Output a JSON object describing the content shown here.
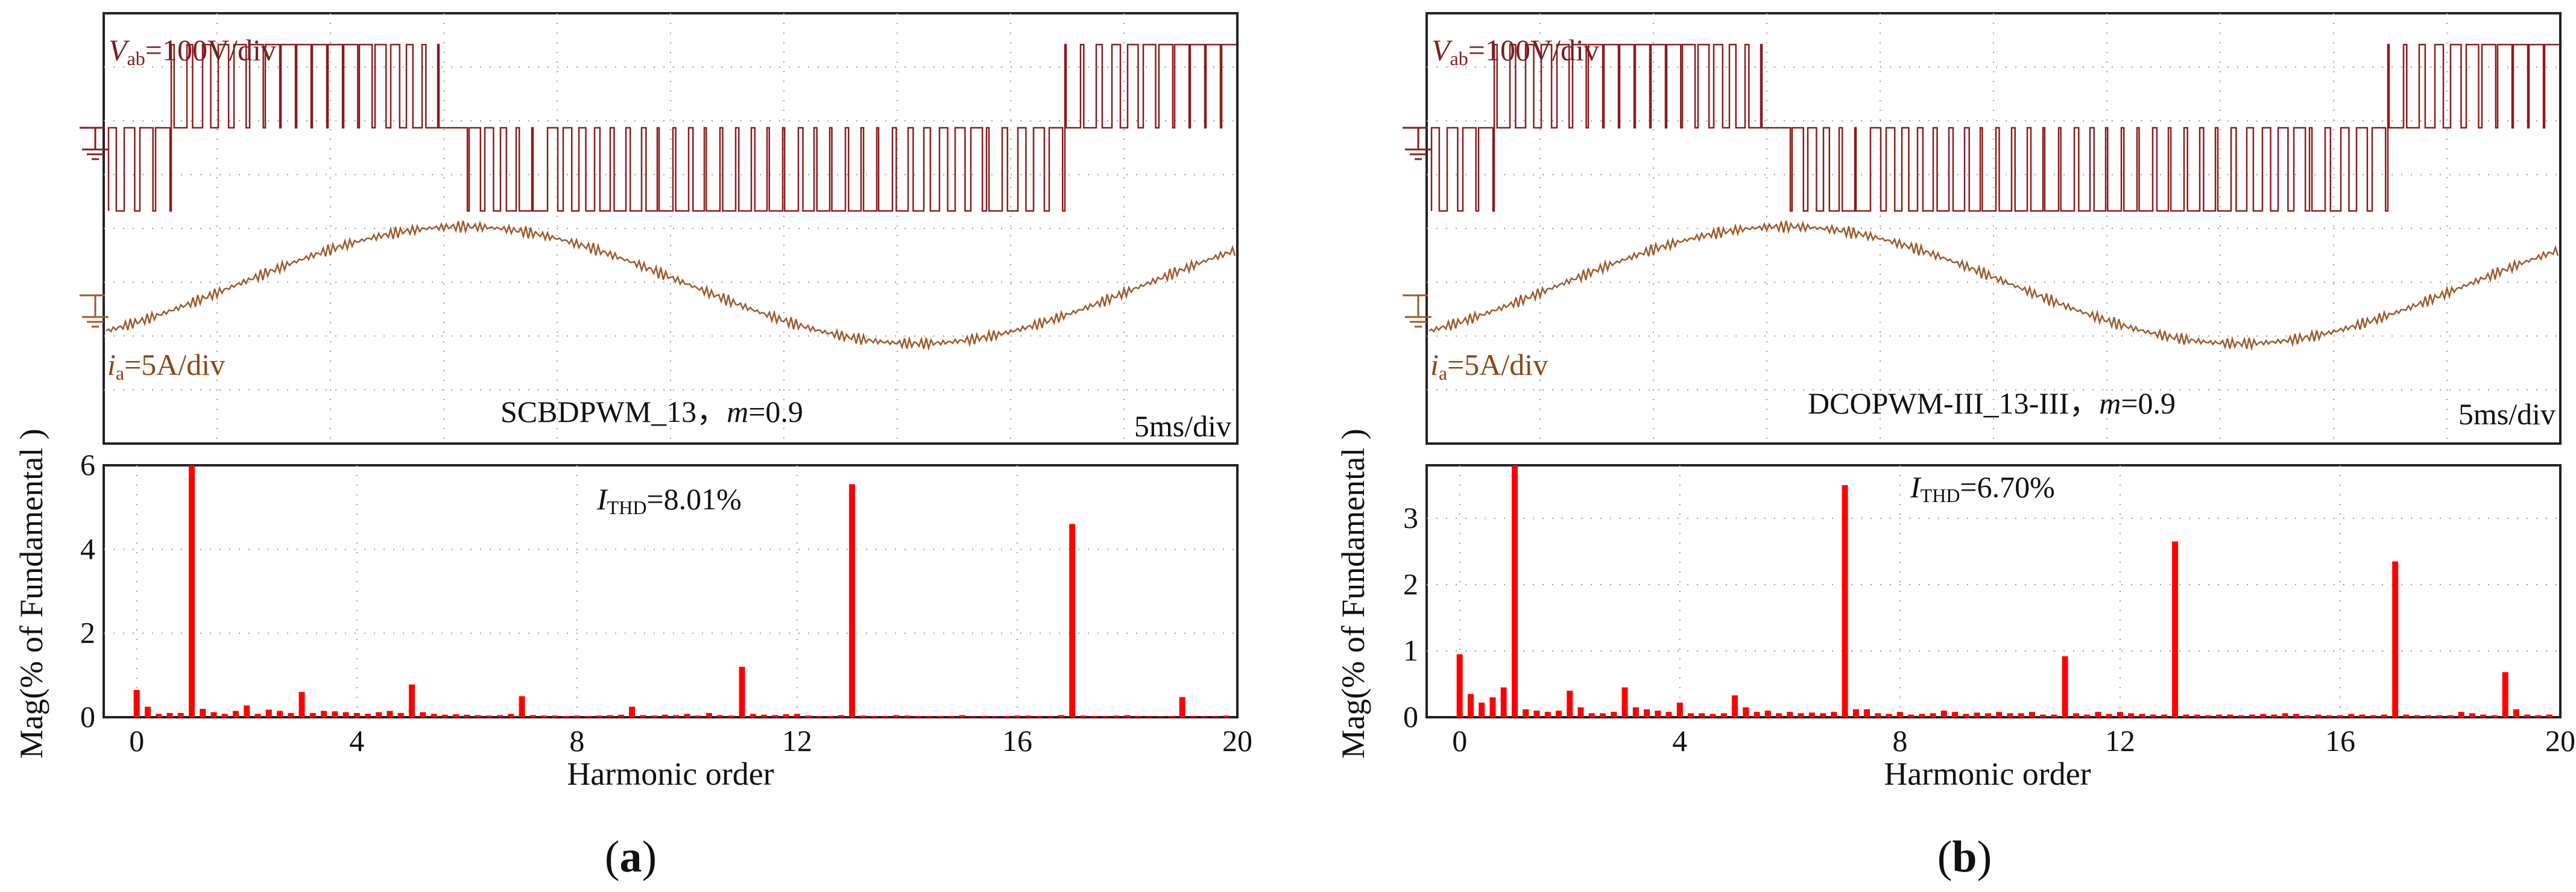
{
  "figure": {
    "colors": {
      "voltage": "#8b1c1c",
      "current": "#9c5a2a",
      "bar": "#ff0000",
      "grid": "#9a9a9a",
      "frame": "#222222"
    },
    "panels": [
      {
        "panel_label": "(a)",
        "panel_letter": "a",
        "scope": {
          "v_label_sym": "V",
          "v_label_sub": "ab",
          "v_label_rest": "=100V/div",
          "i_label_sym": "i",
          "i_label_sub": "a",
          "i_label_rest": "=5A/div",
          "method_text": "SCBDPWM_13，",
          "m_sym": "m",
          "m_value": "=0.9",
          "time_div": "5ms/div"
        },
        "thd": {
          "sym": "I",
          "sub": "THD",
          "value": "=8.01%"
        }
      },
      {
        "panel_label": "(b)",
        "panel_letter": "b",
        "scope": {
          "v_label_sym": "V",
          "v_label_sub": "ab",
          "v_label_rest": "=100V/div",
          "i_label_sym": "i",
          "i_label_sub": "a",
          "i_label_rest": "=5A/div",
          "method_text": "DCOPWM-III_13-III，",
          "m_sym": "m",
          "m_value": "=0.9",
          "time_div": "5ms/div"
        },
        "thd": {
          "sym": "I",
          "sub": "THD",
          "value": "=6.70%"
        }
      }
    ]
  },
  "chart_data": [
    {
      "type": "bar",
      "title": "",
      "xlabel": "Harmonic order",
      "ylabel": "Mag(% of Fundamental )",
      "xlim": [
        -0.6,
        20
      ],
      "ylim": [
        0,
        6
      ],
      "xticks": [
        0,
        4,
        8,
        12,
        16,
        20
      ],
      "yticks": [
        0,
        2,
        4,
        6
      ],
      "x": [
        0,
        0.2,
        0.4,
        0.6,
        0.8,
        1,
        1.2,
        1.4,
        1.6,
        1.8,
        2,
        2.2,
        2.4,
        2.6,
        2.8,
        3,
        3.2,
        3.4,
        3.6,
        3.8,
        4,
        4.2,
        4.4,
        4.6,
        4.8,
        5,
        5.2,
        5.4,
        5.6,
        5.8,
        6,
        6.2,
        6.4,
        6.6,
        6.8,
        7,
        7.2,
        7.4,
        7.6,
        7.8,
        8,
        8.2,
        8.4,
        8.6,
        8.8,
        9,
        9.2,
        9.4,
        9.6,
        9.8,
        10,
        10.2,
        10.4,
        10.6,
        10.8,
        11,
        11.2,
        11.4,
        11.6,
        11.8,
        12,
        12.2,
        12.4,
        12.6,
        12.8,
        13,
        13.2,
        13.4,
        13.6,
        13.8,
        14,
        14.2,
        14.4,
        14.6,
        14.8,
        15,
        15.2,
        15.4,
        15.6,
        15.8,
        16,
        16.2,
        16.4,
        16.6,
        16.8,
        17,
        17.2,
        17.4,
        17.6,
        17.8,
        18,
        18.2,
        18.4,
        18.6,
        18.8,
        19,
        19.2,
        19.4,
        19.6,
        19.8
      ],
      "values": [
        0.65,
        0.25,
        0.08,
        0.1,
        0.1,
        6.1,
        0.2,
        0.12,
        0.08,
        0.15,
        0.28,
        0.08,
        0.18,
        0.15,
        0.1,
        0.6,
        0.1,
        0.15,
        0.14,
        0.12,
        0.1,
        0.08,
        0.12,
        0.15,
        0.1,
        0.78,
        0.12,
        0.08,
        0.06,
        0.07,
        0.06,
        0.05,
        0.04,
        0.05,
        0.08,
        0.5,
        0.05,
        0.04,
        0.04,
        0.03,
        0.04,
        0.03,
        0.04,
        0.05,
        0.06,
        0.25,
        0.05,
        0.04,
        0.06,
        0.05,
        0.08,
        0.04,
        0.1,
        0.05,
        0.04,
        1.2,
        0.08,
        0.06,
        0.05,
        0.07,
        0.08,
        0.04,
        0.03,
        0.03,
        0.05,
        5.55,
        0.04,
        0.03,
        0.03,
        0.05,
        0.04,
        0.03,
        0.03,
        0.03,
        0.03,
        0.05,
        0.02,
        0.03,
        0.02,
        0.03,
        0.04,
        0.04,
        0.03,
        0.02,
        0.05,
        4.6,
        0.04,
        0.03,
        0.03,
        0.04,
        0.05,
        0.03,
        0.02,
        0.02,
        0.03,
        0.48,
        0.03,
        0.02,
        0.02,
        0.04
      ]
    },
    {
      "type": "bar",
      "title": "",
      "xlabel": "Harmonic order",
      "ylabel": "Mag(% of Fundamental )",
      "xlim": [
        -0.6,
        20
      ],
      "ylim": [
        0,
        3.8
      ],
      "xticks": [
        0,
        4,
        8,
        12,
        16,
        20
      ],
      "yticks": [
        0,
        1,
        2,
        3
      ],
      "x": [
        0,
        0.2,
        0.4,
        0.6,
        0.8,
        1,
        1.2,
        1.4,
        1.6,
        1.8,
        2,
        2.2,
        2.4,
        2.6,
        2.8,
        3,
        3.2,
        3.4,
        3.6,
        3.8,
        4,
        4.2,
        4.4,
        4.6,
        4.8,
        5,
        5.2,
        5.4,
        5.6,
        5.8,
        6,
        6.2,
        6.4,
        6.6,
        6.8,
        7,
        7.2,
        7.4,
        7.6,
        7.8,
        8,
        8.2,
        8.4,
        8.6,
        8.8,
        9,
        9.2,
        9.4,
        9.6,
        9.8,
        10,
        10.2,
        10.4,
        10.6,
        10.8,
        11,
        11.2,
        11.4,
        11.6,
        11.8,
        12,
        12.2,
        12.4,
        12.6,
        12.8,
        13,
        13.2,
        13.4,
        13.6,
        13.8,
        14,
        14.2,
        14.4,
        14.6,
        14.8,
        15,
        15.2,
        15.4,
        15.6,
        15.8,
        16,
        16.2,
        16.4,
        16.6,
        16.8,
        17,
        17.2,
        17.4,
        17.6,
        17.8,
        18,
        18.2,
        18.4,
        18.6,
        18.8,
        19,
        19.2,
        19.4,
        19.6,
        19.8
      ],
      "values": [
        0.95,
        0.35,
        0.22,
        0.3,
        0.45,
        3.8,
        0.12,
        0.1,
        0.08,
        0.1,
        0.4,
        0.15,
        0.06,
        0.06,
        0.08,
        0.45,
        0.15,
        0.12,
        0.1,
        0.08,
        0.22,
        0.06,
        0.06,
        0.05,
        0.06,
        0.33,
        0.15,
        0.08,
        0.1,
        0.06,
        0.08,
        0.06,
        0.07,
        0.06,
        0.08,
        3.5,
        0.12,
        0.12,
        0.06,
        0.05,
        0.08,
        0.04,
        0.05,
        0.06,
        0.1,
        0.08,
        0.05,
        0.07,
        0.06,
        0.08,
        0.06,
        0.06,
        0.08,
        0.04,
        0.04,
        0.92,
        0.06,
        0.04,
        0.08,
        0.05,
        0.08,
        0.06,
        0.05,
        0.04,
        0.04,
        2.65,
        0.04,
        0.04,
        0.03,
        0.04,
        0.04,
        0.03,
        0.04,
        0.05,
        0.04,
        0.06,
        0.05,
        0.03,
        0.04,
        0.03,
        0.03,
        0.05,
        0.04,
        0.03,
        0.04,
        2.35,
        0.04,
        0.03,
        0.03,
        0.03,
        0.03,
        0.08,
        0.06,
        0.04,
        0.03,
        0.68,
        0.12,
        0.04,
        0.03,
        0.04
      ]
    }
  ]
}
